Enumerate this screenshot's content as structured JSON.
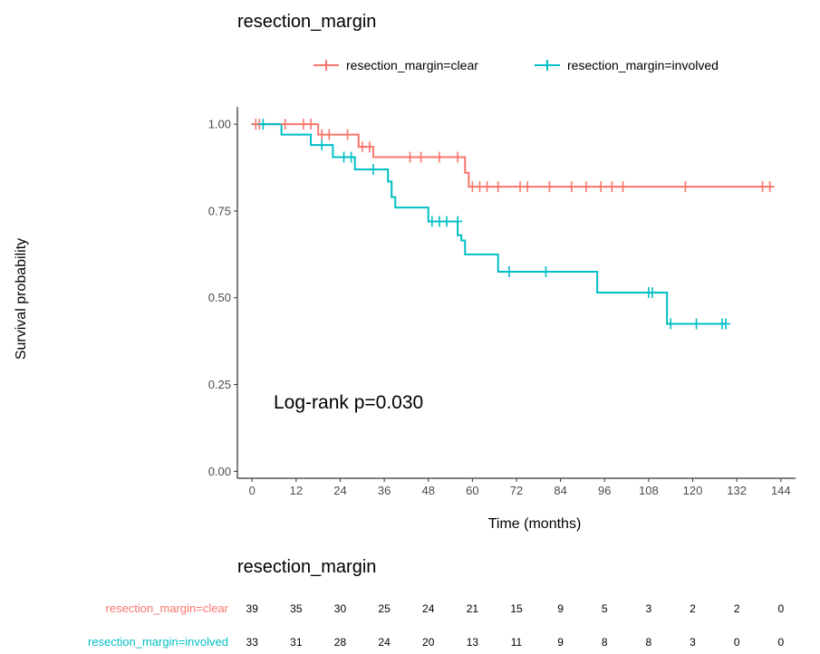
{
  "chart_data": {
    "type": "line",
    "title": "resection_margin",
    "legend": {
      "position": "top",
      "entries": [
        "resection_margin=clear",
        "resection_margin=involved"
      ]
    },
    "xlabel": "Time (months)",
    "ylabel": "Survival probability",
    "xlim": [
      -4,
      148
    ],
    "ylim": [
      -0.02,
      1.05
    ],
    "x_ticks": [
      0,
      12,
      24,
      36,
      48,
      60,
      72,
      84,
      96,
      108,
      120,
      132,
      144
    ],
    "y_ticks": [
      0.0,
      0.25,
      0.5,
      0.75,
      1.0
    ],
    "y_tick_labels": [
      "0.00",
      "0.25",
      "0.50",
      "0.75",
      "1.00"
    ],
    "grid": false,
    "annotation": "Log-rank p=0.030",
    "series": [
      {
        "name": "resection_margin=clear",
        "color": "#F8766D",
        "steps": [
          [
            0,
            1.0
          ],
          [
            18,
            0.97
          ],
          [
            29,
            0.935
          ],
          [
            33,
            0.905
          ],
          [
            58,
            0.86
          ],
          [
            59,
            0.82
          ],
          [
            142,
            0.82
          ]
        ],
        "censored": [
          [
            1,
            1.0
          ],
          [
            2,
            1.0
          ],
          [
            9,
            1.0
          ],
          [
            14,
            1.0
          ],
          [
            16,
            1.0
          ],
          [
            19,
            0.97
          ],
          [
            21,
            0.97
          ],
          [
            26,
            0.97
          ],
          [
            30,
            0.935
          ],
          [
            32,
            0.935
          ],
          [
            43,
            0.905
          ],
          [
            46,
            0.905
          ],
          [
            51,
            0.905
          ],
          [
            56,
            0.905
          ],
          [
            60,
            0.82
          ],
          [
            62,
            0.82
          ],
          [
            64,
            0.82
          ],
          [
            67,
            0.82
          ],
          [
            73,
            0.82
          ],
          [
            75,
            0.82
          ],
          [
            81,
            0.82
          ],
          [
            87,
            0.82
          ],
          [
            91,
            0.82
          ],
          [
            95,
            0.82
          ],
          [
            98,
            0.82
          ],
          [
            101,
            0.82
          ],
          [
            118,
            0.82
          ],
          [
            139,
            0.82
          ],
          [
            141,
            0.82
          ]
        ]
      },
      {
        "name": "resection_margin=involved",
        "color": "#00BFC4",
        "steps": [
          [
            0,
            1.0
          ],
          [
            8,
            0.97
          ],
          [
            16,
            0.94
          ],
          [
            22,
            0.905
          ],
          [
            28,
            0.87
          ],
          [
            37,
            0.835
          ],
          [
            38,
            0.79
          ],
          [
            39,
            0.76
          ],
          [
            48,
            0.72
          ],
          [
            56,
            0.68
          ],
          [
            57,
            0.665
          ],
          [
            58,
            0.625
          ],
          [
            67,
            0.575
          ],
          [
            94,
            0.515
          ],
          [
            113,
            0.425
          ],
          [
            129,
            0.425
          ]
        ],
        "censored": [
          [
            3,
            1.0
          ],
          [
            19,
            0.94
          ],
          [
            25,
            0.905
          ],
          [
            27,
            0.905
          ],
          [
            33,
            0.87
          ],
          [
            49,
            0.72
          ],
          [
            51,
            0.72
          ],
          [
            53,
            0.72
          ],
          [
            56,
            0.72
          ],
          [
            70,
            0.575
          ],
          [
            80,
            0.575
          ],
          [
            108,
            0.515
          ],
          [
            109,
            0.515
          ],
          [
            114,
            0.425
          ],
          [
            121,
            0.425
          ],
          [
            128,
            0.425
          ],
          [
            129,
            0.425
          ]
        ]
      }
    ],
    "risk_table": {
      "title": "resection_margin",
      "times": [
        0,
        12,
        24,
        36,
        48,
        60,
        72,
        84,
        96,
        108,
        120,
        132,
        144
      ],
      "rows": [
        {
          "label": "resection_margin=clear",
          "color": "#F8766D",
          "counts": [
            39,
            35,
            30,
            25,
            24,
            21,
            15,
            9,
            5,
            3,
            2,
            2,
            0
          ]
        },
        {
          "label": "resection_margin=involved",
          "color": "#00BFC4",
          "counts": [
            33,
            31,
            28,
            24,
            20,
            13,
            11,
            9,
            8,
            8,
            3,
            0,
            0
          ]
        }
      ]
    }
  }
}
